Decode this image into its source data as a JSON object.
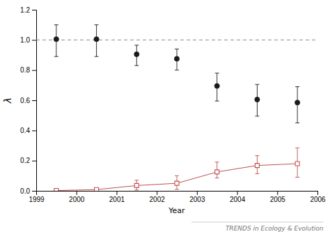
{
  "chart_data": {
    "type": "line",
    "x_label": "Year",
    "y_label": "λ",
    "annotation": "TRENDS in Ecology & Evolution",
    "x": [
      1999.5,
      2000.5,
      2001.5,
      2002.5,
      2003.5,
      2004.5,
      2005.5
    ],
    "series": [
      {
        "color": "#1a1a1a",
        "marker": "circle",
        "line_style": "none",
        "values": [
          1.005,
          1.005,
          0.905,
          0.875,
          0.695,
          0.605,
          0.585
        ],
        "error_lo": [
          0.115,
          0.115,
          0.075,
          0.075,
          0.1,
          0.11,
          0.135
        ],
        "error_hi": [
          0.095,
          0.095,
          0.06,
          0.065,
          0.085,
          0.1,
          0.105
        ]
      },
      {
        "color": "#c0504d",
        "marker": "square-open",
        "line_style": "solid",
        "values": [
          0.002,
          0.008,
          0.035,
          0.05,
          0.125,
          0.168,
          0.18
        ],
        "error_lo": [
          0.002,
          0.008,
          0.03,
          0.04,
          0.04,
          0.055,
          0.09
        ],
        "error_hi": [
          0.003,
          0.008,
          0.035,
          0.05,
          0.065,
          0.065,
          0.105
        ]
      }
    ],
    "reference_line": {
      "value": 1.0,
      "color": "#888888",
      "line_style": "dashed"
    },
    "xlim": [
      1999,
      2006
    ],
    "ylim": [
      0.0,
      1.2
    ],
    "xticks": [
      1999,
      2000,
      2001,
      2002,
      2003,
      2004,
      2005,
      2006
    ],
    "yticks": [
      {
        "value": 0.0,
        "label": "0.0"
      },
      0.2,
      0.4,
      0.6,
      0.8,
      {
        "value": 1.0,
        "label": "1.0"
      },
      1.2
    ],
    "grid": false
  }
}
